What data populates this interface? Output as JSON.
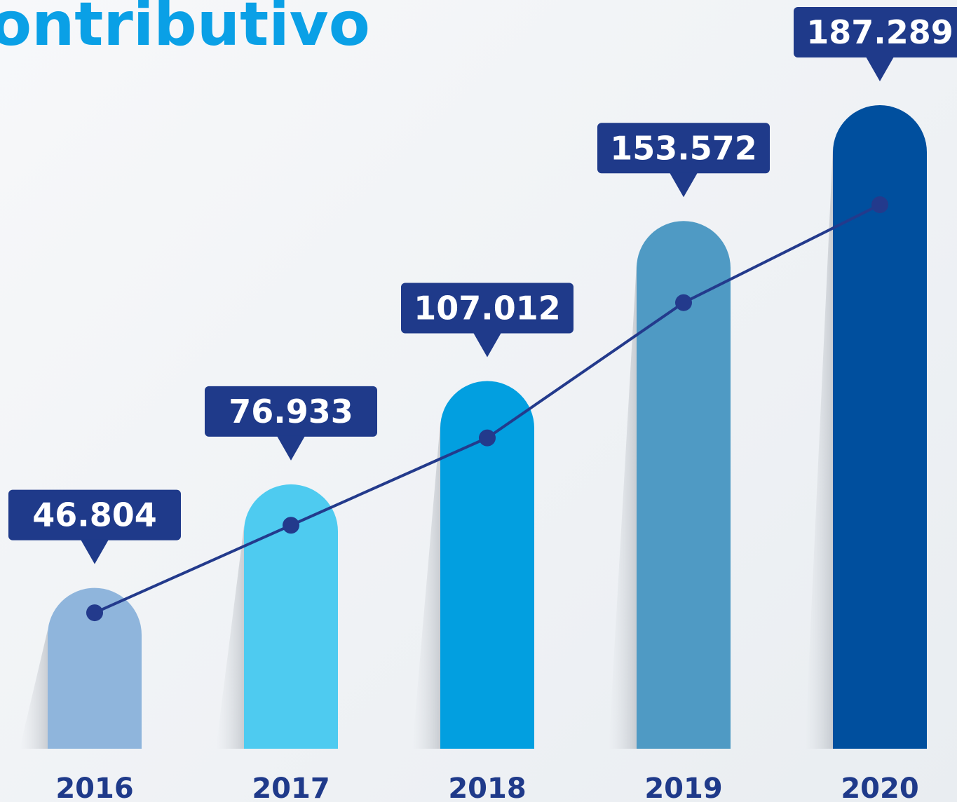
{
  "chart_data": {
    "type": "bar",
    "title": "ontributivo",
    "categories": [
      "2016",
      "2017",
      "2018",
      "2019",
      "2020"
    ],
    "values": [
      46804,
      76933,
      107012,
      153572,
      187289
    ],
    "value_labels": [
      "46.804",
      "76.933",
      "107.012",
      "153.572",
      "187.289"
    ],
    "colors": [
      "#8fb5dc",
      "#4ecbf0",
      "#029fe0",
      "#4f9ac4",
      "#004f9e"
    ],
    "line_color": "#233a8c",
    "label_color": "#1f3a8a",
    "title_color": "#0aa0e6"
  }
}
